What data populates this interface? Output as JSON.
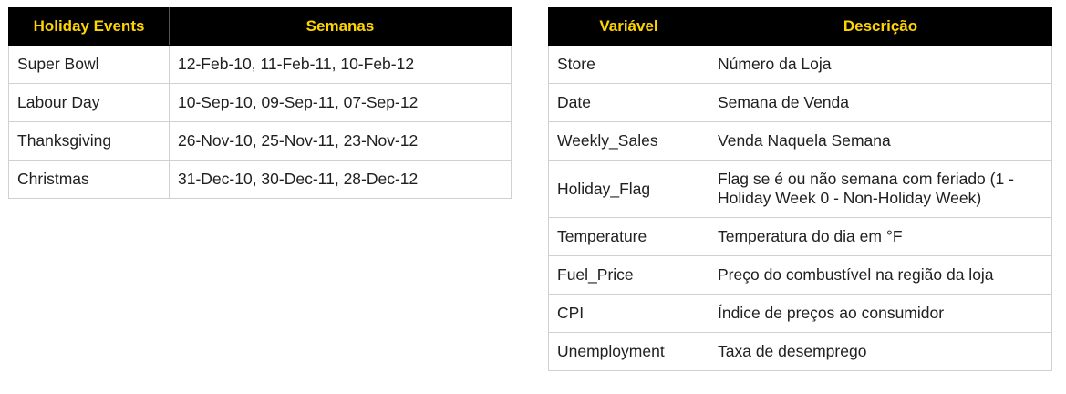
{
  "holiday_table": {
    "headers": [
      "Holiday Events",
      "Semanas"
    ],
    "rows": [
      [
        "Super Bowl",
        "12-Feb-10, 11-Feb-11, 10-Feb-12"
      ],
      [
        "Labour Day",
        "10-Sep-10, 09-Sep-11, 07-Sep-12"
      ],
      [
        "Thanksgiving",
        "26-Nov-10, 25-Nov-11, 23-Nov-12"
      ],
      [
        "Christmas",
        "31-Dec-10, 30-Dec-11, 28-Dec-12"
      ]
    ]
  },
  "variables_table": {
    "headers": [
      "Variável",
      "Descrição"
    ],
    "rows": [
      [
        "Store",
        "Número da Loja"
      ],
      [
        "Date",
        "Semana de Venda"
      ],
      [
        "Weekly_Sales",
        "Venda Naquela Semana"
      ],
      [
        "Holiday_Flag",
        "Flag se é ou não semana com feriado (1 - Holiday Week 0 - Non-Holiday Week)"
      ],
      [
        "Temperature",
        "Temperatura do dia em °F"
      ],
      [
        "Fuel_Price",
        "Preço do combustível na região da loja"
      ],
      [
        "CPI",
        "Índice de preços ao consumidor"
      ],
      [
        "Unemployment",
        "Taxa de desemprego"
      ]
    ]
  },
  "colors": {
    "header_background": "#000000",
    "header_text": "#ffd400",
    "border": "#d0d0d0"
  }
}
